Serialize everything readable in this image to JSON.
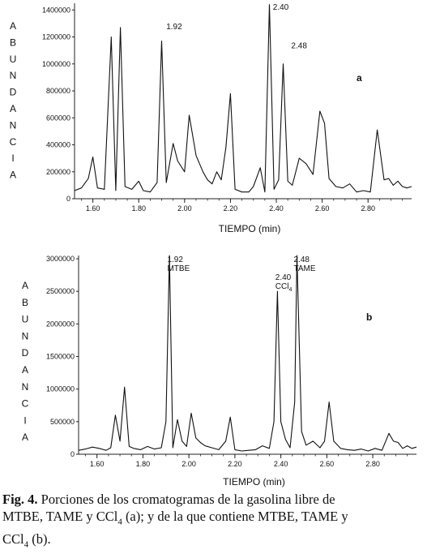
{
  "chart_data": [
    {
      "type": "line",
      "panel_label": "a",
      "title": "",
      "xlabel": "TIEMPO (min)",
      "ylabel": "ABUNDANCIA",
      "xlim": [
        1.52,
        2.99
      ],
      "ylim": [
        0,
        1450000
      ],
      "x_ticks": [
        1.6,
        1.8,
        2.0,
        2.2,
        2.4,
        2.6,
        2.8
      ],
      "x_tick_labels": [
        "1.60",
        "1.80",
        "2.00",
        "2.20",
        "2.40",
        "2.60",
        "2.80"
      ],
      "y_ticks": [
        0,
        200000,
        400000,
        600000,
        800000,
        1000000,
        1200000,
        1400000
      ],
      "y_tick_labels": [
        "0",
        "200000",
        "400000",
        "600000",
        "800000",
        "1000000",
        "1200000",
        "1400000"
      ],
      "annotations": [
        {
          "text": "1.92",
          "x": 1.92,
          "y": 1220000
        },
        {
          "text": "2.40",
          "x": 2.385,
          "y": 1420000
        },
        {
          "text": "2.48",
          "x": 2.465,
          "y": 1080000
        }
      ],
      "series": [
        {
          "x": [
            1.52,
            1.55,
            1.58,
            1.6,
            1.62,
            1.65,
            1.68,
            1.7,
            1.72,
            1.74,
            1.77,
            1.8,
            1.82,
            1.85,
            1.88,
            1.9,
            1.92,
            1.95,
            1.97,
            2.0,
            2.02,
            2.05,
            2.08,
            2.1,
            2.12,
            2.14,
            2.16,
            2.18,
            2.2,
            2.22,
            2.25,
            2.28,
            2.3,
            2.33,
            2.35,
            2.37,
            2.39,
            2.41,
            2.43,
            2.45,
            2.47,
            2.5,
            2.53,
            2.56,
            2.59,
            2.61,
            2.63,
            2.66,
            2.69,
            2.72,
            2.75,
            2.78,
            2.81,
            2.84,
            2.87,
            2.89,
            2.91,
            2.93,
            2.95,
            2.97,
            2.99
          ],
          "y": [
            60000,
            80000,
            150000,
            310000,
            80000,
            70000,
            1200000,
            60000,
            1270000,
            90000,
            70000,
            130000,
            60000,
            50000,
            120000,
            1170000,
            120000,
            410000,
            280000,
            200000,
            620000,
            320000,
            200000,
            140000,
            110000,
            200000,
            140000,
            380000,
            780000,
            70000,
            50000,
            50000,
            90000,
            230000,
            50000,
            1440000,
            70000,
            140000,
            1000000,
            130000,
            100000,
            300000,
            260000,
            180000,
            650000,
            560000,
            150000,
            90000,
            80000,
            110000,
            50000,
            60000,
            50000,
            510000,
            140000,
            150000,
            100000,
            130000,
            90000,
            80000,
            90000
          ]
        }
      ]
    },
    {
      "type": "line",
      "panel_label": "b",
      "title": "",
      "xlabel": "TIEMPO (min)",
      "ylabel": "ABUNDANCIA",
      "xlim": [
        1.52,
        2.99
      ],
      "ylim": [
        0,
        3050000
      ],
      "x_ticks": [
        1.6,
        1.8,
        2.0,
        2.2,
        2.4,
        2.6,
        2.8
      ],
      "x_tick_labels": [
        "1.60",
        "1.80",
        "2.00",
        "2.20",
        "2.40",
        "2.60",
        "2.80"
      ],
      "y_ticks": [
        0,
        500000,
        1000000,
        1500000,
        2000000,
        2500000,
        3000000
      ],
      "y_tick_labels": [
        "0",
        "500000",
        "1000000",
        "1500000",
        "2000000",
        "2500000",
        "3000000"
      ],
      "annotations": [
        {
          "text": "1.92",
          "sub": "MTBE",
          "x": 1.92,
          "y": 3050000
        },
        {
          "text": "2.40",
          "sub": "CCl",
          "sub_index": "4",
          "x": 2.39,
          "y": 2600000
        },
        {
          "text": "2.48",
          "sub": "TAME",
          "x": 2.47,
          "y": 3050000
        }
      ],
      "series": [
        {
          "x": [
            1.52,
            1.55,
            1.58,
            1.61,
            1.64,
            1.66,
            1.68,
            1.7,
            1.72,
            1.74,
            1.76,
            1.79,
            1.82,
            1.85,
            1.88,
            1.9,
            1.915,
            1.93,
            1.95,
            1.97,
            1.99,
            2.01,
            2.03,
            2.05,
            2.07,
            2.1,
            2.13,
            2.16,
            2.18,
            2.2,
            2.23,
            2.26,
            2.29,
            2.32,
            2.35,
            2.37,
            2.385,
            2.4,
            2.42,
            2.44,
            2.46,
            2.47,
            2.49,
            2.51,
            2.54,
            2.57,
            2.59,
            2.61,
            2.63,
            2.66,
            2.69,
            2.72,
            2.75,
            2.78,
            2.81,
            2.84,
            2.87,
            2.89,
            2.91,
            2.93,
            2.95,
            2.97,
            2.99
          ],
          "y": [
            60000,
            80000,
            110000,
            90000,
            60000,
            100000,
            600000,
            200000,
            1030000,
            120000,
            90000,
            70000,
            120000,
            80000,
            100000,
            500000,
            3050000,
            100000,
            530000,
            200000,
            120000,
            630000,
            250000,
            180000,
            130000,
            100000,
            70000,
            200000,
            570000,
            70000,
            50000,
            60000,
            70000,
            130000,
            90000,
            500000,
            2500000,
            500000,
            230000,
            100000,
            800000,
            3050000,
            350000,
            140000,
            200000,
            100000,
            200000,
            800000,
            200000,
            90000,
            70000,
            60000,
            80000,
            50000,
            90000,
            60000,
            320000,
            200000,
            180000,
            90000,
            130000,
            90000,
            110000
          ]
        }
      ]
    }
  ],
  "caption": {
    "fig_label": "Fig. 4.",
    "line1": " Porciones de los cromatogramas de la gasolina libre de",
    "line2": "MTBE, TAME y CCl",
    "line2_sub": "4",
    "line2_rest": " (a); y de la que contiene MTBE, TAME y",
    "line3": "CCl",
    "line3_sub": "4",
    "line3_rest": " (b)."
  }
}
